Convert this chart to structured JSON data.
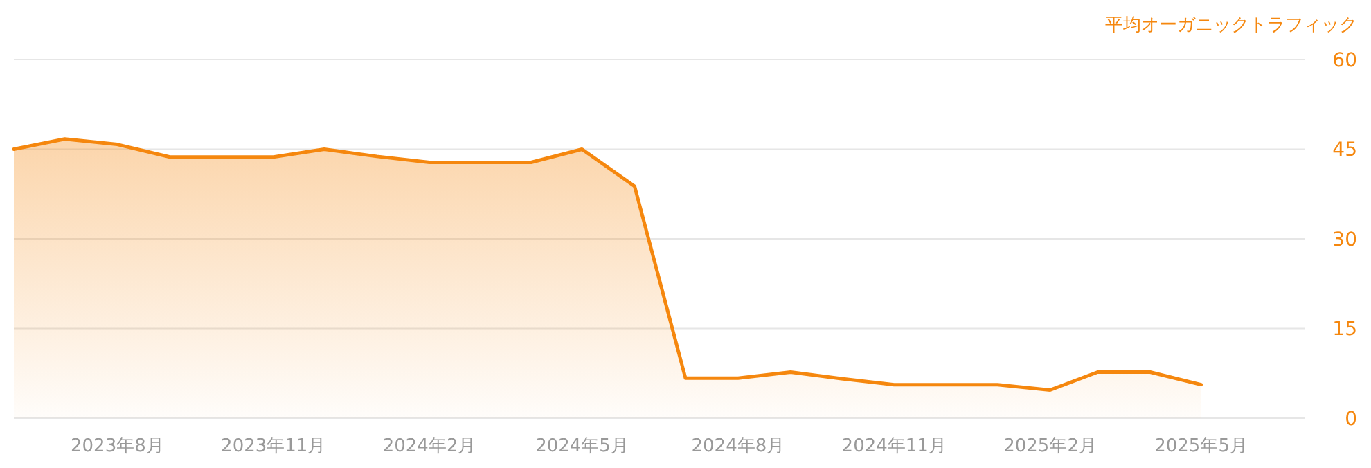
{
  "chart_data": {
    "type": "area",
    "y2label": "平均オーガニックトラフィック",
    "x": [
      "2023-06",
      "2023-07",
      "2023-08",
      "2023-09",
      "2023-10",
      "2023-11",
      "2023-12",
      "2024-01",
      "2024-02",
      "2024-03",
      "2024-04",
      "2024-05",
      "2024-06",
      "2024-07",
      "2024-08",
      "2024-09",
      "2024-10",
      "2024-11",
      "2024-12",
      "2025-01",
      "2025-02",
      "2025-03",
      "2025-04",
      "2025-05"
    ],
    "series": [
      {
        "color": "#f5870e",
        "axis": "y2",
        "values": [
          45,
          46.7,
          45.8,
          43.7,
          43.7,
          43.7,
          45,
          43.8,
          42.8,
          42.8,
          42.8,
          45,
          38.8,
          6.7,
          6.7,
          7.7,
          6.6,
          5.6,
          5.6,
          5.6,
          4.7,
          7.7,
          7.7,
          5.6
        ]
      }
    ],
    "xlim": [
      "2023-06",
      "2025-07"
    ],
    "xticks": [
      {
        "value": "2023-08",
        "label": "2023年8月"
      },
      {
        "value": "2023-11",
        "label": "2023年11月"
      },
      {
        "value": "2024-02",
        "label": "2024年2月"
      },
      {
        "value": "2024-05",
        "label": "2024年5月"
      },
      {
        "value": "2024-08",
        "label": "2024年8月"
      },
      {
        "value": "2024-11",
        "label": "2024年11月"
      },
      {
        "value": "2025-02",
        "label": "2025年2月"
      },
      {
        "value": "2025-05",
        "label": "2025年5月"
      }
    ],
    "y2lim": [
      0,
      60
    ],
    "y2ticks": [
      0,
      15,
      30,
      45,
      60
    ],
    "grid": "y"
  }
}
